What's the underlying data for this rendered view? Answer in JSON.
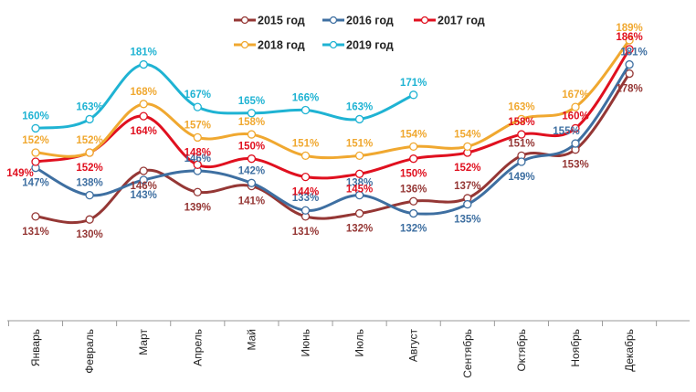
{
  "chart_data": {
    "type": "line",
    "title": "",
    "xlabel": "",
    "ylabel": "",
    "ylim": [
      100,
      195
    ],
    "grid": false,
    "legend_position": "top",
    "categories": [
      "Январь",
      "Февраль",
      "Март",
      "Апрель",
      "Май",
      "Июнь",
      "Июль",
      "Август",
      "Сентябрь",
      "Октябрь",
      "Ноябрь",
      "Декабрь"
    ],
    "series": [
      {
        "name": "2015 год",
        "color": "#953735",
        "values": [
          131,
          130,
          146,
          139,
          141,
          131,
          132,
          136,
          137,
          151,
          153,
          178
        ],
        "labels": [
          "131%",
          "130%",
          "146%",
          "139%",
          "141%",
          "131%",
          "132%",
          "136%",
          "137%",
          "151%",
          "153%",
          "178%"
        ]
      },
      {
        "name": "2016 год",
        "color": "#3E6FA1",
        "values": [
          147,
          138,
          143,
          146,
          142,
          133,
          138,
          132,
          135,
          149,
          155,
          181
        ],
        "labels": [
          "147%",
          "138%",
          "143%",
          "146%",
          "142%",
          "133%",
          "138%",
          "132%",
          "135%",
          "149%",
          "155%",
          "181%"
        ]
      },
      {
        "name": "2017 год",
        "color": "#E0101F",
        "values": [
          149,
          152,
          164,
          148,
          150,
          144,
          145,
          150,
          152,
          158,
          160,
          186
        ],
        "labels": [
          "149%",
          "152%",
          "164%",
          "148%",
          "150%",
          "144%",
          "145%",
          "150%",
          "152%",
          "158%",
          "160%",
          "186%"
        ]
      },
      {
        "name": "2018 год",
        "color": "#F0A830",
        "values": [
          152,
          152,
          168,
          157,
          158,
          151,
          151,
          154,
          154,
          163,
          167,
          189
        ],
        "labels": [
          "152%",
          "152%",
          "168%",
          "157%",
          "158%",
          "151%",
          "151%",
          "154%",
          "154%",
          "163%",
          "167%",
          "189%"
        ]
      },
      {
        "name": "2019 год",
        "color": "#1FB3D3",
        "values": [
          160,
          163,
          181,
          167,
          165,
          166,
          163,
          171,
          null,
          null,
          null,
          null
        ],
        "labels": [
          "160%",
          "163%",
          "181%",
          "167%",
          "165%",
          "166%",
          "163%",
          "171%",
          "",
          "",
          "",
          ""
        ]
      }
    ]
  }
}
